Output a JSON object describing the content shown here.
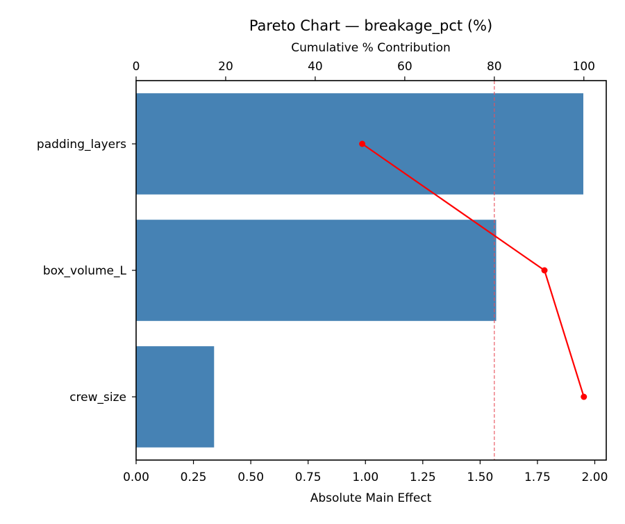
{
  "chart_data": {
    "type": "bar",
    "orientation": "horizontal",
    "title": "Pareto Chart — breakage_pct (%)",
    "xlabel": "Absolute Main Effect",
    "ylabel": "",
    "secondary_xlabel": "Cumulative % Contribution",
    "categories": [
      "padding_layers",
      "box_volume_L",
      "crew_size"
    ],
    "values": [
      1.95,
      1.57,
      0.34
    ],
    "cumulative_pct": [
      50.5,
      91.2,
      100.0
    ],
    "threshold_pct": 80,
    "xlim": [
      0,
      2.05
    ],
    "secondary_xlim": [
      0,
      105
    ],
    "xticks": [
      "0.00",
      "0.25",
      "0.50",
      "0.75",
      "1.00",
      "1.25",
      "1.50",
      "1.75",
      "2.00"
    ],
    "secondary_xticks": [
      "0",
      "20",
      "40",
      "60",
      "80",
      "100"
    ],
    "grid": false,
    "legend": null,
    "colors": {
      "bar": "#4682b4",
      "line": "#ff0000",
      "threshold": "#e8505b"
    }
  }
}
